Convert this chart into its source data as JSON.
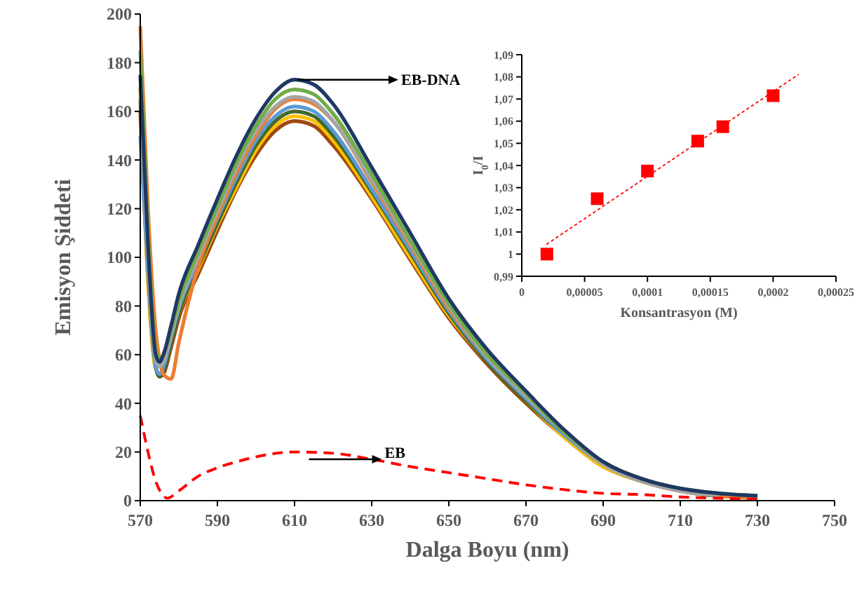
{
  "chart_data": [
    {
      "type": "line",
      "xlabel": "Dalga Boyu (nm)",
      "ylabel": "Emisyon Şiddeti",
      "xlim": [
        570,
        750
      ],
      "ylim": [
        0,
        200
      ],
      "xticks": [
        570,
        590,
        610,
        630,
        650,
        670,
        690,
        710,
        730,
        750
      ],
      "yticks": [
        0,
        20,
        40,
        60,
        80,
        100,
        120,
        140,
        160,
        180,
        200
      ],
      "grid": false,
      "line_style": "solid",
      "x": [
        570,
        572,
        574,
        575,
        576,
        578,
        580,
        585,
        590,
        595,
        600,
        605,
        610,
        615,
        620,
        630,
        640,
        650,
        660,
        670,
        680,
        690,
        700,
        710,
        720,
        730
      ],
      "series": [
        {
          "color": "#9e480e",
          "values": [
            160,
            92,
            55,
            51,
            52,
            63,
            75,
            93,
            111,
            128,
            142,
            152,
            156,
            154,
            146,
            124,
            99,
            75,
            56,
            40,
            26,
            14,
            8,
            4,
            2,
            1
          ]
        },
        {
          "color": "#ffc000",
          "values": [
            170,
            90,
            54,
            52,
            54,
            66,
            77,
            95,
            113,
            129,
            144,
            154,
            158,
            156,
            148,
            125,
            100,
            76,
            57,
            41,
            26,
            14,
            8,
            4,
            null,
            null
          ]
        },
        {
          "color": "#43682b",
          "values": [
            165,
            95,
            55,
            51,
            53,
            65,
            77,
            96,
            114,
            131,
            146,
            156,
            160,
            158,
            150,
            127,
            102,
            77,
            57,
            41,
            27,
            15,
            8,
            4,
            2,
            2
          ]
        },
        {
          "color": "#5b9bd5",
          "values": [
            150,
            95,
            55,
            52,
            55,
            67,
            79,
            98,
            116,
            133,
            148,
            158,
            162,
            160,
            152,
            128,
            103,
            78,
            58,
            42,
            27,
            15,
            8,
            null,
            null,
            null
          ]
        },
        {
          "color": "#ed7d31",
          "values": [
            195,
            120,
            70,
            58,
            52,
            50,
            65,
            96,
            117,
            135,
            150,
            161,
            165,
            163,
            156,
            131,
            105,
            79,
            59,
            43,
            28,
            15,
            8,
            4,
            2,
            1
          ]
        },
        {
          "color": "#a5a5a5",
          "values": [
            170,
            100,
            58,
            55,
            57,
            68,
            80,
            100,
            119,
            137,
            152,
            162,
            166,
            164,
            156,
            132,
            106,
            80,
            59,
            43,
            28,
            15,
            8,
            4,
            2,
            null
          ]
        },
        {
          "color": "#70ad47",
          "values": [
            185,
            110,
            62,
            58,
            60,
            70,
            82,
            102,
            121,
            139,
            154,
            165,
            169,
            167,
            159,
            134,
            107,
            81,
            60,
            44,
            28,
            16,
            9,
            5,
            3,
            2
          ]
        },
        {
          "color": "#1f3864",
          "values": [
            175,
            105,
            60,
            57,
            60,
            72,
            85,
            105,
            124,
            142,
            157,
            168,
            173,
            171,
            163,
            137,
            110,
            83,
            62,
            45,
            29,
            16,
            9,
            5,
            3,
            2
          ]
        },
        {
          "color": "#ff0000",
          "line_style": "dashed",
          "x": [
            570,
            572,
            574,
            576,
            577,
            580,
            585,
            590,
            595,
            600,
            610,
            620,
            630,
            640,
            650,
            660,
            670,
            680,
            690,
            700,
            710,
            720,
            730
          ],
          "values": [
            35,
            20,
            8,
            2,
            1,
            4,
            10,
            13.5,
            16,
            18,
            20,
            19.5,
            17,
            14,
            11.5,
            9,
            6.5,
            4.5,
            3,
            2.5,
            1.5,
            1,
            0.5
          ]
        }
      ],
      "annotations": [
        {
          "text": "EB-DNA",
          "x": 610,
          "y": 173
        },
        {
          "text": "EB",
          "x": 613,
          "y": 17
        }
      ]
    },
    {
      "type": "scatter",
      "xlabel": "Konsantrasyon (M)",
      "ylabel": "I$_{0}$/I",
      "xlim": [
        0,
        0.00025
      ],
      "ylim": [
        0.99,
        1.09
      ],
      "xticks": [
        0,
        {
          "value": 5e-05,
          "label": "0,00005"
        },
        {
          "value": 0.0001,
          "label": "0,0001"
        },
        {
          "value": 0.00015,
          "label": "0,00015"
        },
        {
          "value": 0.0002,
          "label": "0,0002"
        },
        {
          "value": 0.00025,
          "label": "0,00025"
        }
      ],
      "yticks": [
        {
          "value": 0.99,
          "label": "0,99"
        },
        1,
        {
          "value": 1.01,
          "label": "1,01"
        },
        {
          "value": 1.02,
          "label": "1,02"
        },
        {
          "value": 1.03,
          "label": "1,03"
        },
        {
          "value": 1.04,
          "label": "1,04"
        },
        {
          "value": 1.05,
          "label": "1,05"
        },
        {
          "value": 1.06,
          "label": "1,06"
        },
        {
          "value": 1.07,
          "label": "1,07"
        },
        {
          "value": 1.08,
          "label": "1,08"
        },
        {
          "value": 1.09,
          "label": "1,09"
        }
      ],
      "grid": false,
      "marker": "square",
      "x": [
        2e-05,
        6e-05,
        0.0001,
        0.00014,
        0.00016,
        0.0002
      ],
      "series": [
        {
          "color": "#ff0000",
          "values": [
            1.0,
            1.025,
            1.0375,
            1.051,
            1.0575,
            1.0715
          ]
        },
        {
          "type": "line",
          "marker": "none",
          "line_style": "dotted",
          "color": "#ff0000",
          "x": [
            2e-05,
            0.00022
          ],
          "values": [
            1.0045,
            1.081
          ]
        }
      ]
    }
  ]
}
